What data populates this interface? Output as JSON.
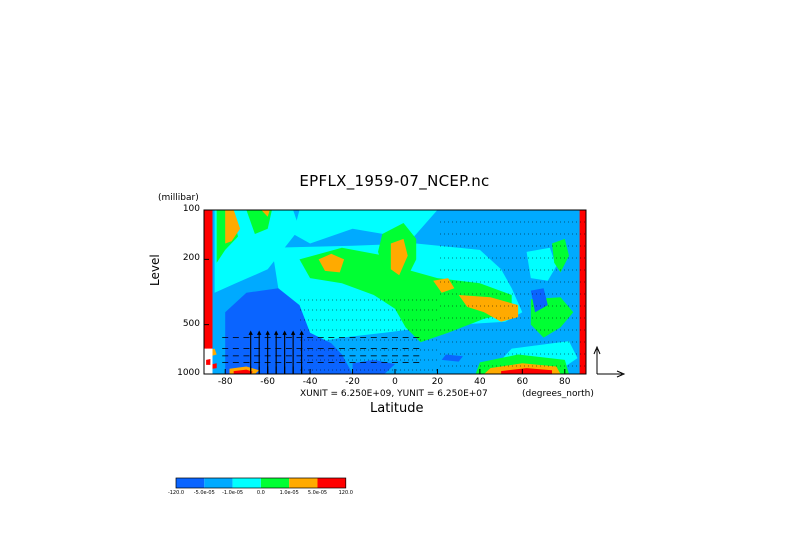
{
  "chart_data": {
    "type": "heatmap",
    "title": "EPFLX_1959-07_NCEP.nc",
    "ylabel": "Level",
    "yunits": "(millibar)",
    "xlabel": "Latitude",
    "xunits": "(degrees_north)",
    "vector_scale_note": "XUNIT = 6.250E+09, YUNIT = 6.250E+07",
    "xlim": [
      -90,
      90
    ],
    "ylim": [
      1000,
      100
    ],
    "yscale": "log",
    "x_ticks": [
      -80,
      -60,
      -40,
      -20,
      0,
      20,
      40,
      60,
      80
    ],
    "x_tick_labels": [
      "-80",
      "-60",
      "-40",
      "-20",
      "0",
      "20",
      "40",
      "60",
      "80"
    ],
    "y_ticks": [
      100,
      200,
      500,
      1000
    ],
    "y_tick_labels": [
      "100",
      "200",
      "500",
      "1000"
    ],
    "colorbar": {
      "levels": [
        -120,
        -5e-05,
        -1e-05,
        0,
        1e-05,
        5e-05,
        120
      ],
      "labels": [
        "-120.0",
        "-5.0e-05",
        "-1.0e-05",
        "0.0",
        "1.0e-05",
        "5.0e-05",
        "120.0"
      ],
      "colors": [
        "#0a64ff",
        "#00aaff",
        "#00ffff",
        "#00ff33",
        "#ffaa00",
        "#ff0000"
      ]
    },
    "base_color": "#00aaff",
    "regions": [
      {
        "color": "#ff0000",
        "points": [
          [
            -90,
            1000
          ],
          [
            -86,
            1000
          ],
          [
            -86,
            100
          ],
          [
            -90,
            100
          ]
        ]
      },
      {
        "color": "#ff0000",
        "points": [
          [
            87,
            1000
          ],
          [
            90,
            1000
          ],
          [
            90,
            100
          ],
          [
            87,
            100
          ]
        ]
      },
      {
        "color": "#00ffff",
        "points": [
          [
            -85,
            100
          ],
          [
            -48,
            100
          ],
          [
            -45,
            130
          ],
          [
            -52,
            170
          ],
          [
            -60,
            230
          ],
          [
            -75,
            280
          ],
          [
            -85,
            320
          ]
        ]
      },
      {
        "color": "#00ff33",
        "points": [
          [
            -84,
            100
          ],
          [
            -77,
            100
          ],
          [
            -74,
            145
          ],
          [
            -80,
            175
          ],
          [
            -84,
            210
          ]
        ]
      },
      {
        "color": "#ffaa00",
        "points": [
          [
            -80,
            100
          ],
          [
            -76,
            100
          ],
          [
            -73,
            130
          ],
          [
            -77,
            155
          ],
          [
            -80,
            160
          ]
        ]
      },
      {
        "color": "#00ff33",
        "points": [
          [
            -70,
            100
          ],
          [
            -58,
            100
          ],
          [
            -60,
            130
          ],
          [
            -66,
            140
          ]
        ]
      },
      {
        "color": "#ffaa00",
        "points": [
          [
            -63,
            100
          ],
          [
            -59,
            100
          ],
          [
            -60,
            110
          ]
        ]
      },
      {
        "color": "#00ffff",
        "points": [
          [
            -45,
            100
          ],
          [
            20,
            100
          ],
          [
            8,
            150
          ],
          [
            -20,
            130
          ],
          [
            -40,
            160
          ],
          [
            -48,
            140
          ]
        ]
      },
      {
        "color": "#00ffff",
        "points": [
          [
            -58,
            170
          ],
          [
            -20,
            165
          ],
          [
            10,
            160
          ],
          [
            40,
            175
          ],
          [
            50,
            230
          ],
          [
            55,
            300
          ],
          [
            60,
            420
          ],
          [
            52,
            480
          ],
          [
            30,
            500
          ],
          [
            15,
            520
          ],
          [
            -5,
            560
          ],
          [
            -25,
            600
          ],
          [
            -40,
            650
          ],
          [
            -50,
            560
          ],
          [
            -55,
            300
          ]
        ]
      },
      {
        "color": "#00ff33",
        "points": [
          [
            -45,
            200
          ],
          [
            -25,
            170
          ],
          [
            -5,
            190
          ],
          [
            5,
            230
          ],
          [
            20,
            260
          ],
          [
            40,
            280
          ],
          [
            55,
            330
          ],
          [
            55,
            420
          ],
          [
            42,
            460
          ],
          [
            25,
            560
          ],
          [
            12,
            640
          ],
          [
            5,
            520
          ],
          [
            0,
            400
          ],
          [
            -10,
            330
          ],
          [
            -25,
            280
          ],
          [
            -40,
            260
          ]
        ]
      },
      {
        "color": "#ffaa00",
        "points": [
          [
            -36,
            200
          ],
          [
            -30,
            185
          ],
          [
            -24,
            200
          ],
          [
            -26,
            240
          ],
          [
            -33,
            235
          ]
        ]
      },
      {
        "color": "#00ff33",
        "points": [
          [
            -6,
            140
          ],
          [
            4,
            120
          ],
          [
            10,
            150
          ],
          [
            10,
            200
          ],
          [
            5,
            270
          ],
          [
            -4,
            250
          ],
          [
            -8,
            180
          ]
        ]
      },
      {
        "color": "#ffaa00",
        "points": [
          [
            -2,
            160
          ],
          [
            4,
            150
          ],
          [
            6,
            190
          ],
          [
            2,
            250
          ],
          [
            -2,
            230
          ]
        ]
      },
      {
        "color": "#ffaa00",
        "points": [
          [
            30,
            330
          ],
          [
            45,
            340
          ],
          [
            58,
            380
          ],
          [
            58,
            450
          ],
          [
            50,
            480
          ],
          [
            42,
            420
          ],
          [
            34,
            390
          ]
        ]
      },
      {
        "color": "#ffaa00",
        "points": [
          [
            18,
            270
          ],
          [
            25,
            260
          ],
          [
            28,
            300
          ],
          [
            22,
            320
          ]
        ]
      },
      {
        "color": "#00ffff",
        "points": [
          [
            62,
            180
          ],
          [
            73,
            170
          ],
          [
            76,
            220
          ],
          [
            72,
            270
          ],
          [
            64,
            260
          ]
        ]
      },
      {
        "color": "#00ff33",
        "points": [
          [
            74,
            160
          ],
          [
            80,
            150
          ],
          [
            82,
            190
          ],
          [
            78,
            240
          ],
          [
            75,
            210
          ]
        ]
      },
      {
        "color": "#00ff33",
        "points": [
          [
            64,
            350
          ],
          [
            78,
            340
          ],
          [
            84,
            420
          ],
          [
            78,
            520
          ],
          [
            70,
            600
          ],
          [
            64,
            500
          ]
        ]
      },
      {
        "color": "#00ffff",
        "points": [
          [
            55,
            700
          ],
          [
            82,
            630
          ],
          [
            86,
            800
          ],
          [
            75,
            1000
          ],
          [
            48,
            1000
          ],
          [
            50,
            820
          ]
        ]
      },
      {
        "color": "#00ff33",
        "points": [
          [
            40,
            850
          ],
          [
            58,
            760
          ],
          [
            80,
            820
          ],
          [
            82,
            1000
          ],
          [
            38,
            1000
          ]
        ]
      },
      {
        "color": "#ffaa00",
        "points": [
          [
            45,
            920
          ],
          [
            60,
            860
          ],
          [
            76,
            900
          ],
          [
            78,
            1000
          ],
          [
            42,
            1000
          ]
        ]
      },
      {
        "color": "#ff0000",
        "points": [
          [
            50,
            960
          ],
          [
            62,
            920
          ],
          [
            74,
            950
          ],
          [
            74,
            1000
          ],
          [
            50,
            1000
          ]
        ]
      },
      {
        "color": "#0a64ff",
        "points": [
          [
            -80,
            420
          ],
          [
            -70,
            320
          ],
          [
            -55,
            300
          ],
          [
            -45,
            380
          ],
          [
            -40,
            560
          ],
          [
            -30,
            650
          ],
          [
            -25,
            760
          ],
          [
            -20,
            1000
          ],
          [
            -80,
            1000
          ]
        ]
      },
      {
        "color": "#0a64ff",
        "points": [
          [
            -20,
            860
          ],
          [
            -10,
            820
          ],
          [
            0,
            870
          ],
          [
            -5,
            1000
          ],
          [
            -20,
            1000
          ]
        ]
      },
      {
        "color": "#0a64ff",
        "points": [
          [
            64,
            310
          ],
          [
            70,
            300
          ],
          [
            72,
            380
          ],
          [
            66,
            420
          ]
        ]
      },
      {
        "color": "#0a64ff",
        "points": [
          [
            24,
            760
          ],
          [
            32,
            780
          ],
          [
            30,
            840
          ],
          [
            22,
            820
          ]
        ]
      },
      {
        "color": "#ffaa00",
        "points": [
          [
            -78,
            930
          ],
          [
            -70,
            900
          ],
          [
            -64,
            950
          ],
          [
            -66,
            1000
          ],
          [
            -78,
            1000
          ]
        ]
      },
      {
        "color": "#ff0000",
        "points": [
          [
            -76,
            960
          ],
          [
            -70,
            940
          ],
          [
            -67,
            970
          ],
          [
            -68,
            1000
          ],
          [
            -76,
            1000
          ]
        ]
      },
      {
        "color": "#ffaa00",
        "points": [
          [
            -88,
            720
          ],
          [
            -85,
            700
          ],
          [
            -84,
            760
          ],
          [
            -87,
            780
          ]
        ]
      },
      {
        "color": "#ff0000",
        "points": [
          [
            -86,
            870
          ],
          [
            -84,
            860
          ],
          [
            -84,
            920
          ],
          [
            -86,
            930
          ]
        ]
      },
      {
        "color": "#ffffff",
        "points": [
          [
            -90,
            700
          ],
          [
            -86,
            700
          ],
          [
            -86,
            1000
          ],
          [
            -90,
            1000
          ]
        ]
      },
      {
        "color": "#ff0000",
        "points": [
          [
            -89,
            640
          ],
          [
            -87,
            630
          ],
          [
            -87,
            690
          ],
          [
            -89,
            700
          ]
        ]
      },
      {
        "color": "#ff0000",
        "points": [
          [
            -89,
            820
          ],
          [
            -87,
            810
          ],
          [
            -87,
            880
          ],
          [
            -89,
            880
          ]
        ]
      }
    ],
    "vectors": {
      "lat_min": -80,
      "lat_max": 10,
      "lat_step": 5,
      "levels": [
        850,
        775,
        700,
        600
      ],
      "upward_lats": [
        -68,
        -64,
        -60,
        -56,
        -52,
        -48,
        -44
      ]
    }
  }
}
